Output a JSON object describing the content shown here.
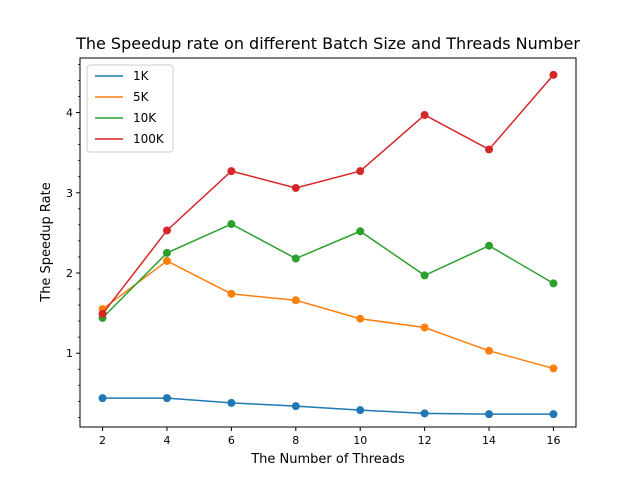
{
  "chart_data": {
    "type": "line",
    "title": "The Speedup rate on different Batch Size and Threads Number",
    "xlabel": "The Number of Threads",
    "ylabel": "The Speedup Rate",
    "x": [
      2,
      4,
      6,
      8,
      10,
      12,
      14,
      16
    ],
    "xticks": [
      2,
      4,
      6,
      8,
      10,
      12,
      14,
      16
    ],
    "yticks": [
      1,
      2,
      3,
      4
    ],
    "xlim": [
      1.3,
      16.7
    ],
    "ylim": [
      0.08,
      4.68
    ],
    "grid": false,
    "legend_position": "top-left",
    "series": [
      {
        "name": "1K",
        "color": "#1f77b4",
        "values": [
          0.44,
          0.44,
          0.38,
          0.34,
          0.29,
          0.25,
          0.24,
          0.24
        ]
      },
      {
        "name": "5K",
        "color": "#ff7f0e",
        "values": [
          1.55,
          2.15,
          1.74,
          1.66,
          1.43,
          1.32,
          1.03,
          0.81
        ]
      },
      {
        "name": "10K",
        "color": "#2ca02c",
        "values": [
          1.44,
          2.25,
          2.61,
          2.18,
          2.52,
          1.97,
          2.34,
          1.87
        ]
      },
      {
        "name": "100K",
        "color": "#d62728",
        "values": [
          1.49,
          2.53,
          3.27,
          3.06,
          3.27,
          3.97,
          3.54,
          4.47
        ]
      }
    ]
  }
}
